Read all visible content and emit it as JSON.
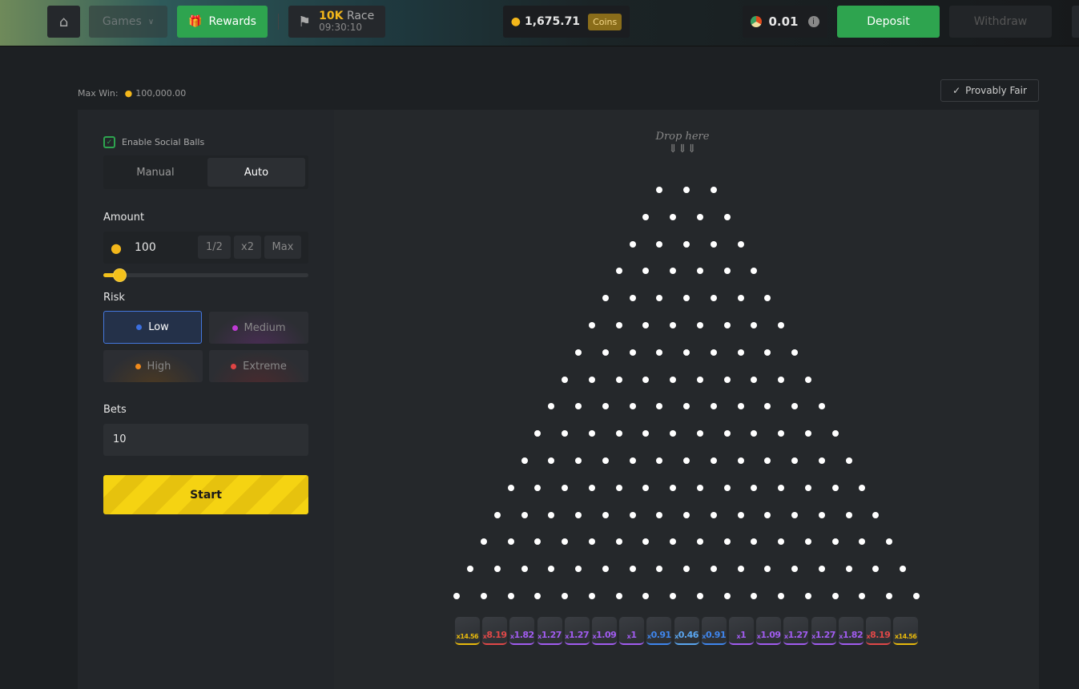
{
  "topbar": {
    "games_label": "Games",
    "rewards_label": "Rewards",
    "race_amount": "10K",
    "race_label": "Race",
    "race_timer": "09:30:10",
    "balance": "1,675.71",
    "currency_badge": "Coins",
    "ball_balance": "0.01",
    "deposit_label": "Deposit",
    "withdraw_label": "Withdraw"
  },
  "game": {
    "max_win_label": "Max Win:",
    "max_win_value": "100,000.00",
    "provably_fair_label": "Provably Fair",
    "drop_here": "Drop here"
  },
  "controls": {
    "social_balls_label": "Enable Social Balls",
    "social_balls_checked": true,
    "modes": [
      "Manual",
      "Auto"
    ],
    "active_mode": "Auto",
    "amount_label": "Amount",
    "amount_value": "100",
    "half_label": "1/2",
    "double_label": "x2",
    "max_label": "Max",
    "amount_slider_fraction": 0.08,
    "risk_label": "Risk",
    "risks": [
      {
        "label": "Low",
        "color": "#3b6fe0"
      },
      {
        "label": "Medium",
        "color": "#c03bd6"
      },
      {
        "label": "High",
        "color": "#f08a1c"
      },
      {
        "label": "Extreme",
        "color": "#e04444"
      }
    ],
    "active_risk": "Low",
    "bets_label": "Bets",
    "bets_value": "10",
    "start_label": "Start"
  },
  "board": {
    "rows": 16,
    "multipliers": [
      {
        "v": "14.56",
        "color": "#e8b90c"
      },
      {
        "v": "8.19",
        "color": "#e04848"
      },
      {
        "v": "1.82",
        "color": "#a15cf0"
      },
      {
        "v": "1.27",
        "color": "#a15cf0"
      },
      {
        "v": "1.27",
        "color": "#a15cf0"
      },
      {
        "v": "1.09",
        "color": "#a15cf0"
      },
      {
        "v": "1",
        "color": "#a15cf0"
      },
      {
        "v": "0.91",
        "color": "#3f86ee"
      },
      {
        "v": "0.46",
        "color": "#5aa6f0"
      },
      {
        "v": "0.91",
        "color": "#3f86ee"
      },
      {
        "v": "1",
        "color": "#a15cf0"
      },
      {
        "v": "1.09",
        "color": "#a15cf0"
      },
      {
        "v": "1.27",
        "color": "#a15cf0"
      },
      {
        "v": "1.27",
        "color": "#a15cf0"
      },
      {
        "v": "1.82",
        "color": "#a15cf0"
      },
      {
        "v": "8.19",
        "color": "#e04848"
      },
      {
        "v": "14.56",
        "color": "#e8b90c"
      }
    ]
  }
}
